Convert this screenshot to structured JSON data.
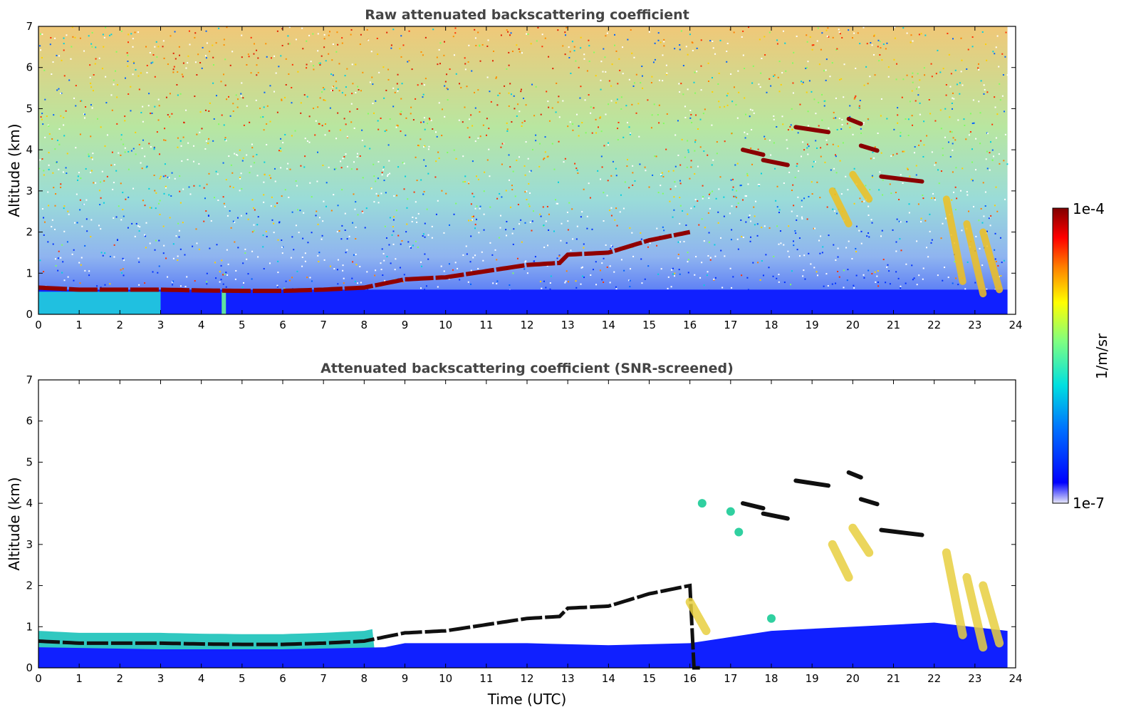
{
  "chart_data": [
    {
      "type": "heatmap",
      "title": "Raw attenuated backscattering coefficient",
      "xlabel": "",
      "ylabel": "Altitude (km)",
      "xlim": [
        0,
        24
      ],
      "ylim": [
        0,
        7
      ],
      "xticks": [
        "0",
        "1",
        "2",
        "3",
        "4",
        "5",
        "6",
        "7",
        "8",
        "9",
        "10",
        "11",
        "12",
        "13",
        "14",
        "15",
        "16",
        "17",
        "18",
        "19",
        "20",
        "21",
        "22",
        "23",
        "24"
      ],
      "yticks": [
        "0",
        "1",
        "2",
        "3",
        "4",
        "5",
        "6",
        "7"
      ],
      "boundary_layer_top_km": [
        [
          0,
          0.65
        ],
        [
          1,
          0.6
        ],
        [
          2,
          0.6
        ],
        [
          3,
          0.6
        ],
        [
          4,
          0.58
        ],
        [
          5,
          0.57
        ],
        [
          6,
          0.57
        ],
        [
          7,
          0.6
        ],
        [
          8,
          0.65
        ],
        [
          8.5,
          0.75
        ],
        [
          9,
          0.85
        ],
        [
          10,
          0.9
        ],
        [
          11,
          1.05
        ],
        [
          12,
          1.2
        ],
        [
          12.8,
          1.25
        ],
        [
          13,
          1.45
        ],
        [
          14,
          1.5
        ],
        [
          15,
          1.8
        ],
        [
          16,
          2.0
        ]
      ],
      "cloud_layers_km": [
        {
          "start": 17.3,
          "end": 17.8,
          "alt": 4.0
        },
        {
          "start": 17.8,
          "end": 18.4,
          "alt": 3.75
        },
        {
          "start": 18.6,
          "end": 19.4,
          "alt": 4.55
        },
        {
          "start": 19.9,
          "end": 20.2,
          "alt": 4.75
        },
        {
          "start": 20.2,
          "end": 20.6,
          "alt": 4.1
        },
        {
          "start": 20.7,
          "end": 21.7,
          "alt": 3.35
        }
      ],
      "grid": false
    },
    {
      "type": "heatmap",
      "title": "Attenuated backscattering coefficient (SNR-screened)",
      "xlabel": "Time (UTC)",
      "ylabel": "Altitude (km)",
      "xlim": [
        0,
        24
      ],
      "ylim": [
        0,
        7
      ],
      "xticks": [
        "0",
        "1",
        "2",
        "3",
        "4",
        "5",
        "6",
        "7",
        "8",
        "9",
        "10",
        "11",
        "12",
        "13",
        "14",
        "15",
        "16",
        "17",
        "18",
        "19",
        "20",
        "21",
        "22",
        "23",
        "24"
      ],
      "yticks": [
        "0",
        "1",
        "2",
        "3",
        "4",
        "5",
        "6",
        "7"
      ],
      "grid": false
    }
  ],
  "colorbar": {
    "min_label": "1e-7",
    "max_label": "1e-4",
    "units": "1/m/sr",
    "colormap": "jet",
    "colors": [
      "#e8e8f8",
      "#0000ff",
      "#0080ff",
      "#00e0e0",
      "#80ff80",
      "#ffff00",
      "#ff8000",
      "#ff0000",
      "#800000"
    ]
  }
}
